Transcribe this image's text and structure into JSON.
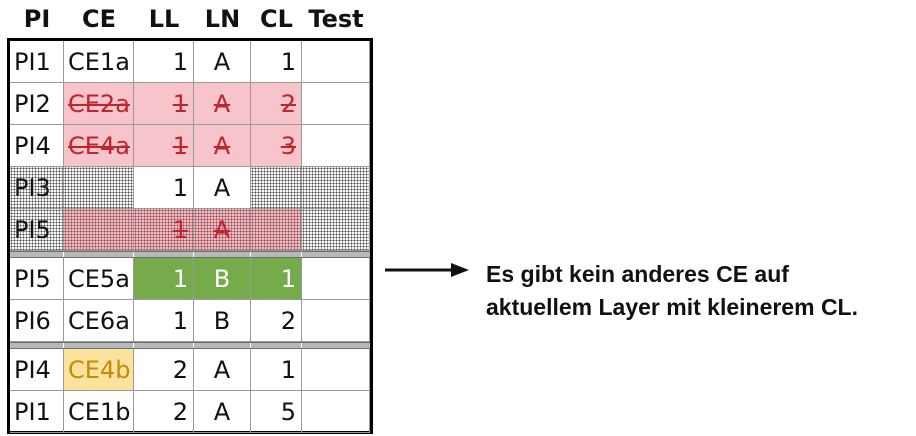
{
  "headers": [
    "PI",
    "CE",
    "LL",
    "LN",
    "CL",
    "Test"
  ],
  "groups": [
    {
      "rows": [
        {
          "pi": "PI1",
          "ce": "CE1a",
          "ll": "1",
          "ln": "A",
          "cl": "1",
          "test": "",
          "style": "normal"
        },
        {
          "pi": "PI2",
          "ce": "CE2a",
          "ll": "1",
          "ln": "A",
          "cl": "2",
          "test": "",
          "style": "struck"
        },
        {
          "pi": "PI4",
          "ce": "CE4a",
          "ll": "1",
          "ln": "A",
          "cl": "3",
          "test": "",
          "style": "struck"
        },
        {
          "pi": "PI3",
          "ce": "",
          "ll": "1",
          "ln": "A",
          "cl": "",
          "test": "",
          "style": "dotted"
        },
        {
          "pi": "PI5",
          "ce": "",
          "ll": "1",
          "ln": "A",
          "cl": "",
          "test": "",
          "style": "dotted-struck"
        }
      ]
    },
    {
      "rows": [
        {
          "pi": "PI5",
          "ce": "CE5a",
          "ll": "1",
          "ln": "B",
          "cl": "1",
          "test": "",
          "style": "selected"
        },
        {
          "pi": "PI6",
          "ce": "CE6a",
          "ll": "1",
          "ln": "B",
          "cl": "2",
          "test": "",
          "style": "normal"
        }
      ]
    },
    {
      "rows": [
        {
          "pi": "PI4",
          "ce": "CE4b",
          "ll": "2",
          "ln": "A",
          "cl": "1",
          "test": "",
          "style": "highlight-ce"
        },
        {
          "pi": "PI1",
          "ce": "CE1b",
          "ll": "2",
          "ln": "A",
          "cl": "5",
          "test": "",
          "style": "normal"
        }
      ]
    }
  ],
  "annotation": {
    "line1": "Es gibt kein anderes CE auf",
    "line2": "aktuellem Layer mit kleinerem CL."
  },
  "colors": {
    "struck_fill": "#f7c4cc",
    "struck_text": "#c0242c",
    "selected_fill": "#76ab4c",
    "highlight_fill": "#fbe39d",
    "highlight_text": "#c48a0a"
  }
}
